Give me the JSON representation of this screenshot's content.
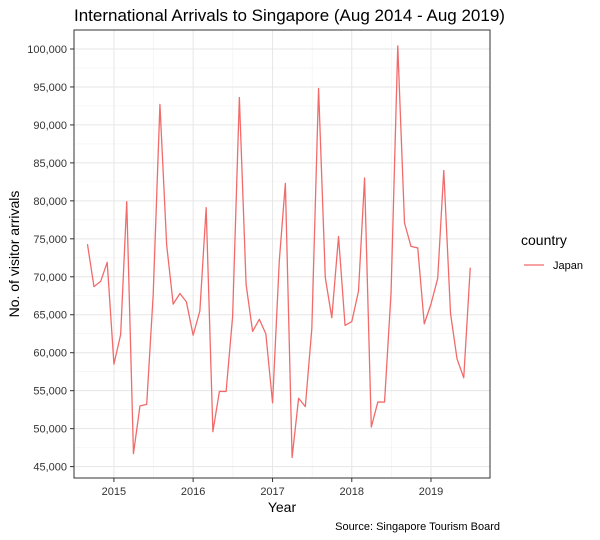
{
  "chart_data": {
    "type": "line",
    "title": "International Arrivals to Singapore (Aug 2014 - Aug 2019)",
    "xlabel": "Year",
    "ylabel": "No. of visitor arrivals",
    "caption": "Source: Singapore Tourism Board",
    "legend": {
      "title": "country",
      "placement": "right"
    },
    "xlim": [
      "2014-07-01",
      "2019-09-30"
    ],
    "ylim": [
      43500,
      102500
    ],
    "x_ticks": [
      {
        "label": "2015",
        "date": "2015-01-01"
      },
      {
        "label": "2016",
        "date": "2016-01-01"
      },
      {
        "label": "2017",
        "date": "2017-01-01"
      },
      {
        "label": "2018",
        "date": "2018-01-01"
      },
      {
        "label": "2019",
        "date": "2019-01-01"
      }
    ],
    "y_ticks": [
      {
        "label": "45,000",
        "value": 45000
      },
      {
        "label": "50,000",
        "value": 50000
      },
      {
        "label": "55,000",
        "value": 55000
      },
      {
        "label": "60,000",
        "value": 60000
      },
      {
        "label": "65,000",
        "value": 65000
      },
      {
        "label": "70,000",
        "value": 70000
      },
      {
        "label": "75,000",
        "value": 75000
      },
      {
        "label": "80,000",
        "value": 80000
      },
      {
        "label": "85,000",
        "value": 85000
      },
      {
        "label": "90,000",
        "value": 90000
      },
      {
        "label": "95,000",
        "value": 95000
      },
      {
        "label": "100,000",
        "value": 100000
      }
    ],
    "grid": true,
    "series": [
      {
        "name": "Japan",
        "color": "#f26b6b",
        "x": [
          "2014-09-01",
          "2014-10-01",
          "2014-11-01",
          "2014-12-01",
          "2015-01-01",
          "2015-02-01",
          "2015-03-01",
          "2015-04-01",
          "2015-05-01",
          "2015-06-01",
          "2015-07-01",
          "2015-08-01",
          "2015-09-01",
          "2015-10-01",
          "2015-11-01",
          "2015-12-01",
          "2016-01-01",
          "2016-02-01",
          "2016-03-01",
          "2016-04-01",
          "2016-05-01",
          "2016-06-01",
          "2016-07-01",
          "2016-08-01",
          "2016-09-01",
          "2016-10-01",
          "2016-11-01",
          "2016-12-01",
          "2017-01-01",
          "2017-02-01",
          "2017-03-01",
          "2017-04-01",
          "2017-05-01",
          "2017-06-01",
          "2017-07-01",
          "2017-08-01",
          "2017-09-01",
          "2017-10-01",
          "2017-11-01",
          "2017-12-01",
          "2018-01-01",
          "2018-02-01",
          "2018-03-01",
          "2018-04-01",
          "2018-05-01",
          "2018-06-01",
          "2018-07-01",
          "2018-08-01",
          "2018-09-01",
          "2018-10-01",
          "2018-11-01",
          "2018-12-01",
          "2019-01-01",
          "2019-02-01",
          "2019-03-01",
          "2019-04-01",
          "2019-05-01",
          "2019-06-01",
          "2019-07-01"
        ],
        "values": [
          74300,
          68700,
          69400,
          71900,
          58500,
          62400,
          79900,
          46700,
          53000,
          53200,
          67700,
          92700,
          74200,
          66400,
          67800,
          66700,
          62300,
          65500,
          79100,
          49600,
          54900,
          54900,
          64800,
          93600,
          69000,
          62800,
          64400,
          62500,
          53400,
          72100,
          82300,
          46200,
          54000,
          52900,
          63200,
          94800,
          69900,
          64600,
          75300,
          63600,
          64100,
          68100,
          83000,
          50200,
          53500,
          53500,
          67900,
          100400,
          77100,
          74000,
          73800,
          63800,
          66400,
          69800,
          84000,
          65200,
          59200,
          56700,
          71200
        ]
      }
    ]
  }
}
